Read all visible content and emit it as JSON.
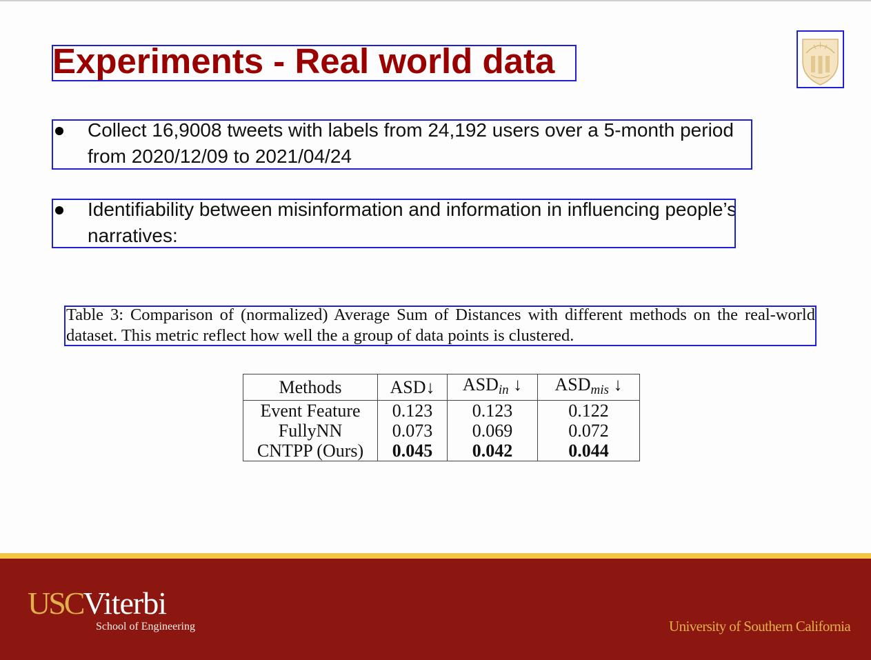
{
  "slide": {
    "title": "Experiments - Real world data",
    "bullets": [
      "Collect 16,9008 tweets with labels from 24,192 users over a 5-month period from 2020/12/09 to 2021/04/24",
      "Identifiability between misinformation and information in influencing people’s narratives:"
    ],
    "caption": "Table 3:  Comparison of (normalized) Average Sum of Distances with different methods on the real-world dataset. This metric reflect how well the a group of data points is clustered.",
    "table": {
      "headers": {
        "methods": "Methods",
        "asd": "ASD↓",
        "asd_in_base": "ASD",
        "asd_in_sub": "in",
        "asd_in_arrow": "↓",
        "asd_mis_base": "ASD",
        "asd_mis_sub": "mis",
        "asd_mis_arrow": "↓"
      },
      "rows": [
        {
          "method": "Event Feature",
          "asd": "0.123",
          "asd_in": "0.123",
          "asd_mis": "0.122"
        },
        {
          "method": "FullyNN",
          "asd": "0.073",
          "asd_in": "0.069",
          "asd_mis": "0.072"
        },
        {
          "method": "CNTPP (Ours)",
          "asd": "0.045",
          "asd_in": "0.042",
          "asd_mis": "0.044"
        }
      ]
    }
  },
  "footer": {
    "logo_usc": "USC",
    "logo_viterbi": "Viterbi",
    "school": "School of Engineering",
    "university": "University of Southern California"
  },
  "colors": {
    "title": "#990000",
    "annotation_box": "#1f1fd6",
    "footer_bg": "#8b1710",
    "footer_stripe": "#f3c543",
    "gold_text": "#e2b04a"
  },
  "icons": {
    "crest": "usc-crest-icon"
  }
}
